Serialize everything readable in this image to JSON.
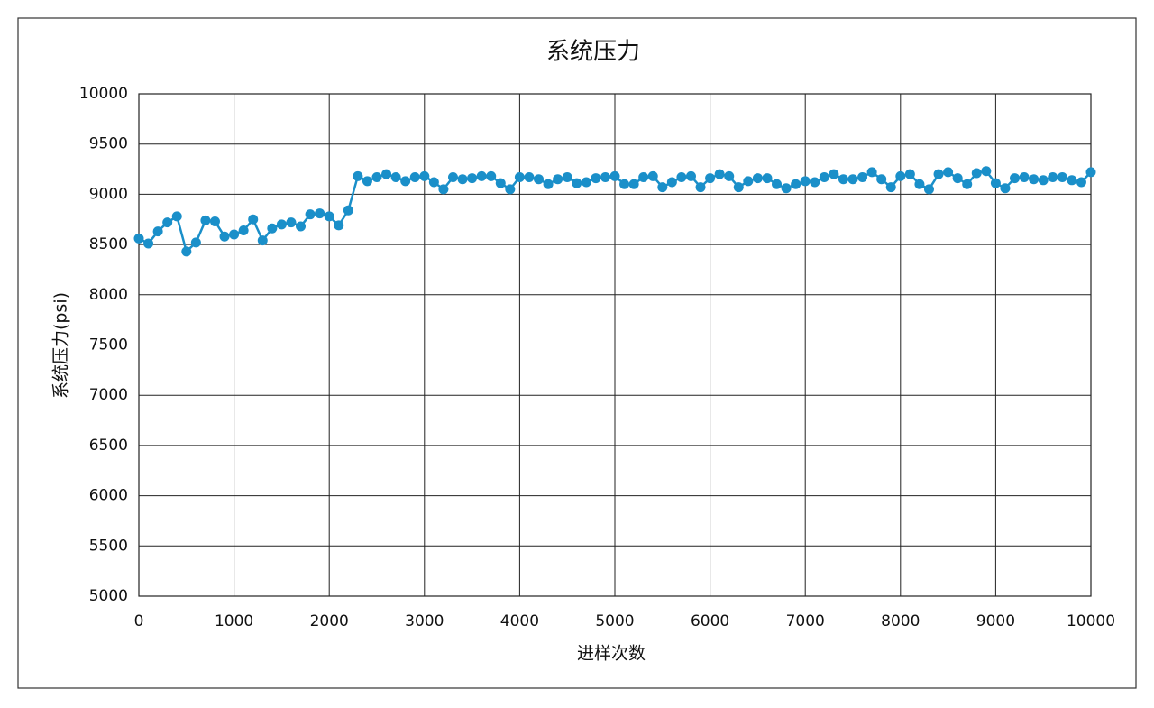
{
  "chart_data": {
    "type": "line",
    "title": "系统压力",
    "x_label": "进样次数",
    "y_label": "系统压力(psi)",
    "x": [
      0,
      100,
      200,
      300,
      400,
      500,
      600,
      700,
      800,
      900,
      1000,
      1100,
      1200,
      1300,
      1400,
      1500,
      1600,
      1700,
      1800,
      1900,
      2000,
      2100,
      2200,
      2300,
      2400,
      2500,
      2600,
      2700,
      2800,
      2900,
      3000,
      3100,
      3200,
      3300,
      3400,
      3500,
      3600,
      3700,
      3800,
      3900,
      4000,
      4100,
      4200,
      4300,
      4400,
      4500,
      4600,
      4700,
      4800,
      4900,
      5000,
      5100,
      5200,
      5300,
      5400,
      5500,
      5600,
      5700,
      5800,
      5900,
      6000,
      6100,
      6200,
      6300,
      6400,
      6500,
      6600,
      6700,
      6800,
      6900,
      7000,
      7100,
      7200,
      7300,
      7400,
      7500,
      7600,
      7700,
      7800,
      7900,
      8000,
      8100,
      8200,
      8300,
      8400,
      8500,
      8600,
      8700,
      8800,
      8900,
      9000,
      9100,
      9200,
      9300,
      9400,
      9500,
      9600,
      9700,
      9800,
      9900,
      10000
    ],
    "values": [
      8560,
      8510,
      8630,
      8720,
      8780,
      8430,
      8520,
      8740,
      8730,
      8580,
      8600,
      8640,
      8750,
      8540,
      8660,
      8700,
      8720,
      8680,
      8800,
      8810,
      8780,
      8690,
      8840,
      9180,
      9130,
      9170,
      9200,
      9170,
      9130,
      9170,
      9180,
      9120,
      9050,
      9170,
      9150,
      9160,
      9180,
      9180,
      9110,
      9050,
      9170,
      9170,
      9150,
      9100,
      9150,
      9170,
      9110,
      9120,
      9160,
      9170,
      9180,
      9100,
      9100,
      9170,
      9180,
      9070,
      9120,
      9170,
      9180,
      9070,
      9160,
      9200,
      9180,
      9070,
      9130,
      9160,
      9160,
      9100,
      9060,
      9100,
      9130,
      9120,
      9170,
      9200,
      9150,
      9150,
      9170,
      9220,
      9150,
      9070,
      9180,
      9200,
      9100,
      9050,
      9200,
      9220,
      9160,
      9100,
      9210,
      9230,
      9110,
      9060,
      9160,
      9170,
      9150,
      9140,
      9170,
      9170,
      9140,
      9120,
      9220
    ],
    "color": "#1a8fc9",
    "xlim": [
      0,
      10000
    ],
    "xticks": [
      0,
      1000,
      2000,
      3000,
      4000,
      5000,
      6000,
      7000,
      8000,
      9000,
      10000
    ],
    "ylim": [
      5000,
      10000
    ],
    "yticks": [
      5000,
      5500,
      6000,
      6500,
      7000,
      7500,
      8000,
      8500,
      9000,
      9500,
      10000
    ],
    "grid": true
  }
}
